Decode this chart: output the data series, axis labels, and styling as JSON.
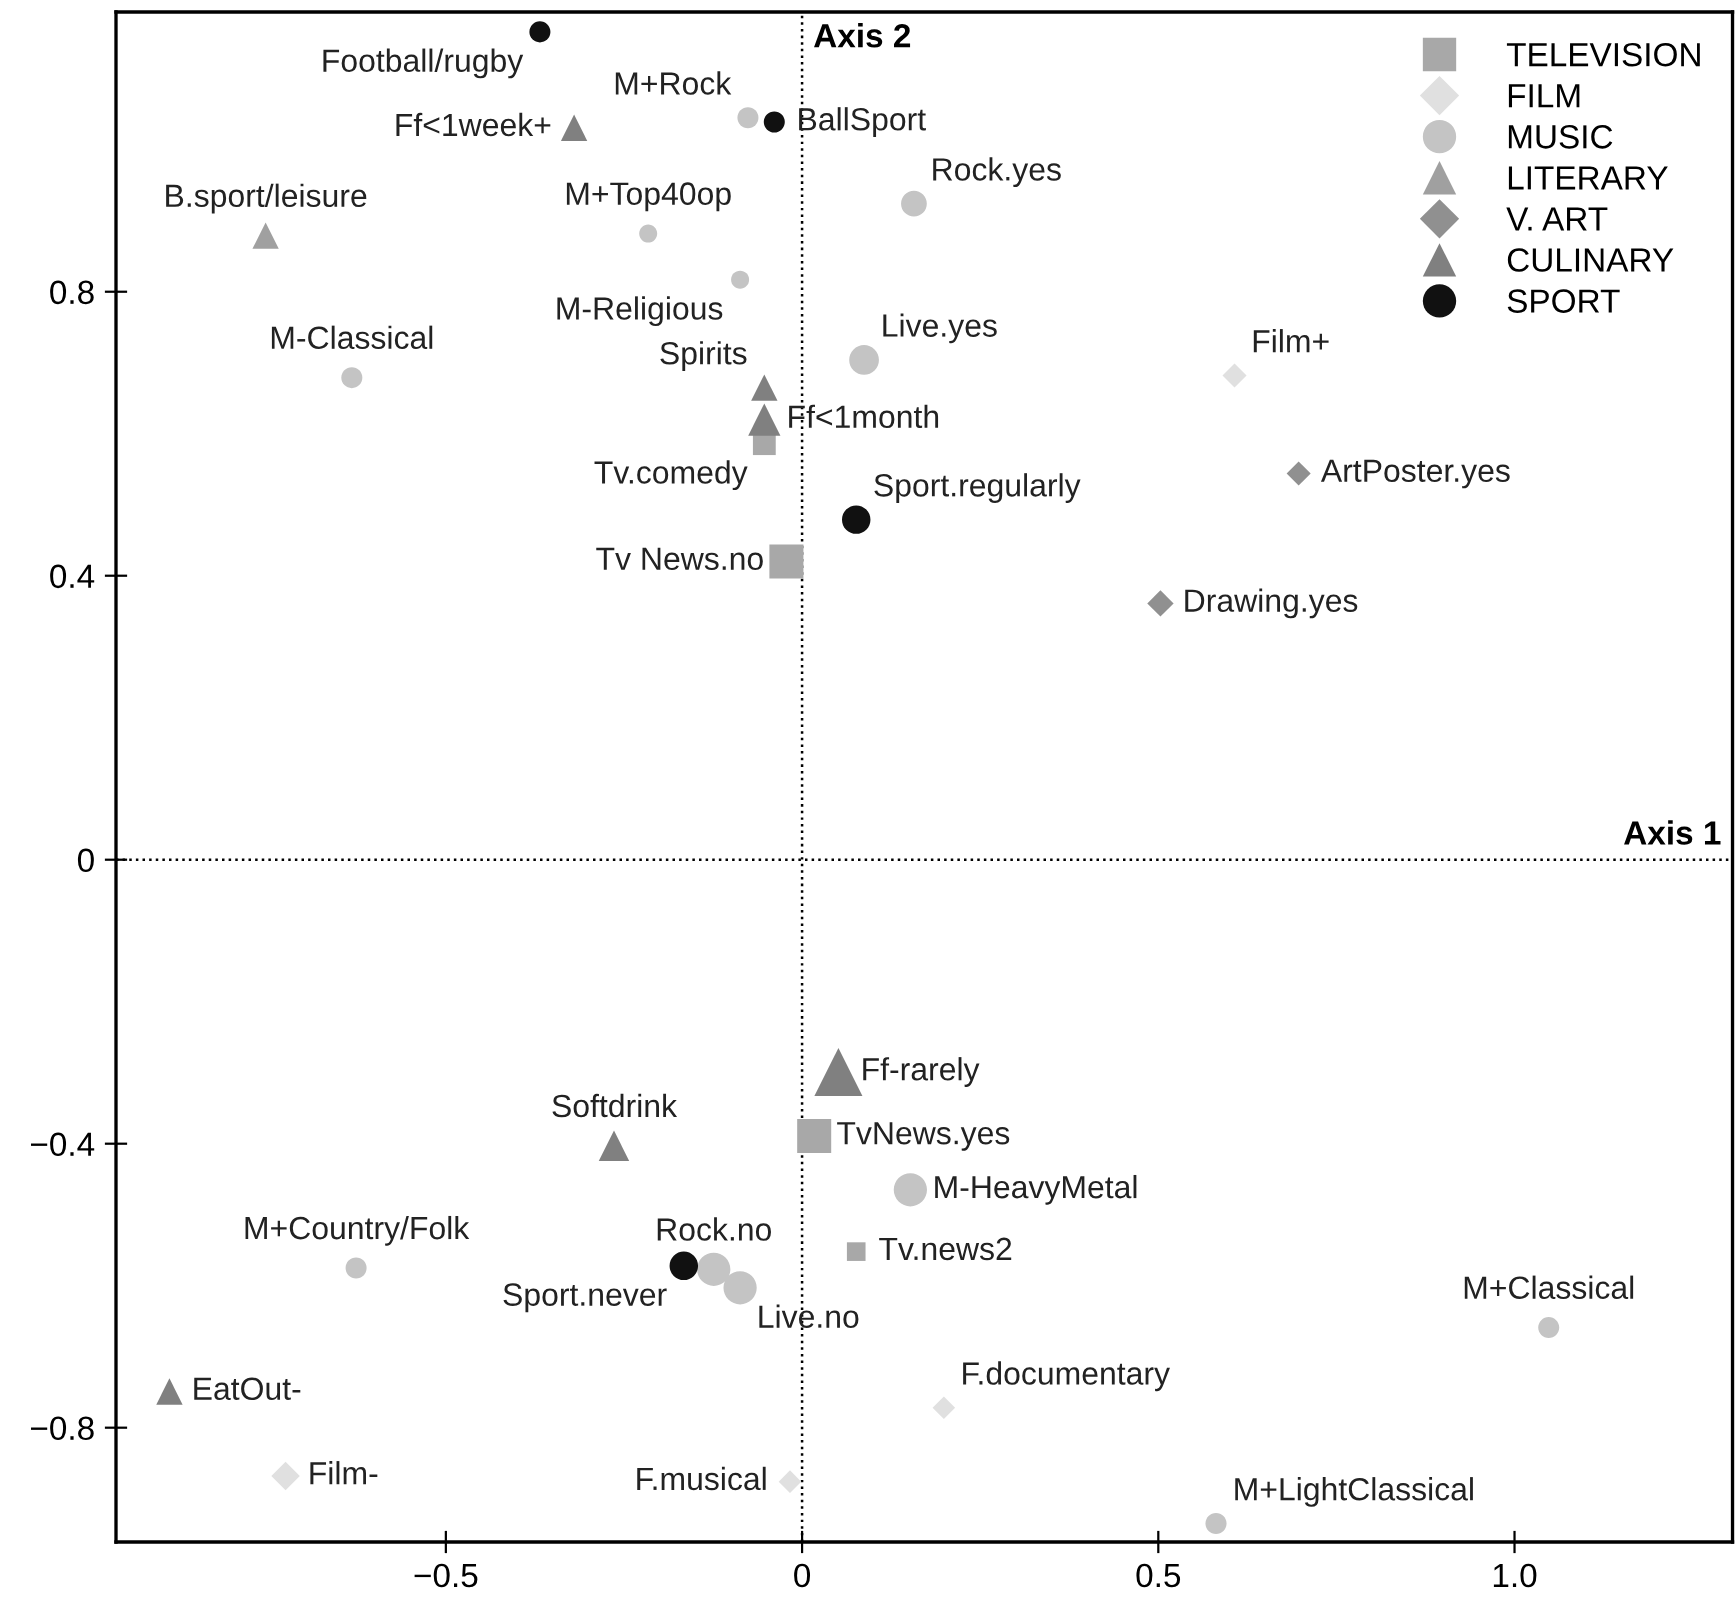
{
  "chart_data": {
    "type": "bubble",
    "xlim": [
      -0.963,
      1.306
    ],
    "ylim": [
      -0.961,
      1.194
    ],
    "xticks": [
      {
        "value": -0.5,
        "label": "−0.5"
      },
      0,
      0.5,
      {
        "value": 1.0,
        "label": "1.0"
      }
    ],
    "yticks": [
      {
        "value": -0.8,
        "label": "−0.8"
      },
      {
        "value": -0.4,
        "label": "−0.4"
      },
      0,
      0.4,
      0.8
    ],
    "ref_lines": [
      {
        "axis": "x",
        "value": 0,
        "label": "Axis 2",
        "line_style": "dotted",
        "color": "#000000"
      },
      {
        "axis": "y",
        "value": 0,
        "label": "Axis 1",
        "line_style": "dotted",
        "color": "#000000"
      }
    ],
    "grid": false,
    "legend": "top right",
    "series": [
      {
        "name": "TELEVISION",
        "color": "#a8a8a8",
        "marker": "square",
        "x": [
          -0.053,
          -0.022,
          0.017,
          0.076
        ],
        "values": [
          0.586,
          0.42,
          -0.389,
          -0.552
        ],
        "sizes": [
          0.45,
          1,
          1,
          0.3
        ],
        "value_labels": [
          "Tv.comedy",
          "Tv News.no",
          "TvNews.yes",
          "Tv.news2"
        ]
      },
      {
        "name": "FILM",
        "color": "#e0e0e0",
        "marker": "diamond",
        "x": [
          0.607,
          0.199,
          -0.725,
          -0.017
        ],
        "values": [
          0.682,
          -0.772,
          -0.868,
          -0.876
        ],
        "sizes": [
          0.25,
          0.22,
          0.35,
          0.22
        ],
        "value_labels": [
          "Film+",
          "F.documentary",
          "Film-",
          "F.musical"
        ]
      },
      {
        "name": "MUSIC",
        "color": "#c4c4c4",
        "marker": "circle",
        "x": [
          -0.076,
          0.157,
          -0.216,
          -0.087,
          -0.632,
          0.087,
          0.152,
          -0.626,
          -0.124,
          -0.087,
          1.048,
          0.581
        ],
        "values": [
          1.045,
          0.924,
          0.882,
          0.817,
          0.679,
          0.704,
          -0.465,
          -0.575,
          -0.577,
          -0.603,
          -0.659,
          -0.935
        ],
        "sizes": [
          0.3,
          0.45,
          0.22,
          0.22,
          0.3,
          0.6,
          0.75,
          0.3,
          0.75,
          0.75,
          0.3,
          0.3
        ],
        "value_labels": [
          "M+Rock",
          "Rock.yes",
          "M+Top40op",
          "M-Religious",
          "M-Classical",
          "Live.yes",
          "M-HeavyMetal",
          "M+Country/Folk",
          "Rock.no",
          "Live.no",
          "M+Classical",
          "M+LightClassical"
        ]
      },
      {
        "name": "LITERARY",
        "color": "#a0a0a0",
        "marker": "triangle",
        "x": [
          -0.753
        ],
        "values": [
          0.879
        ],
        "sizes": [
          0.3
        ],
        "value_labels": [
          "B.sport/leisure"
        ]
      },
      {
        "name": "V. ART",
        "color": "#909090",
        "marker": "diamond",
        "x": [
          0.697,
          0.503
        ],
        "values": [
          0.544,
          0.361
        ],
        "sizes": [
          0.25,
          0.3
        ],
        "value_labels": [
          "ArtPoster.yes",
          "Drawing.yes"
        ]
      },
      {
        "name": "CULINARY",
        "color": "#808080",
        "marker": "triangle",
        "x": [
          -0.32,
          -0.053,
          -0.053,
          0.051,
          -0.264,
          -0.888
        ],
        "values": [
          1.031,
          0.665,
          0.62,
          -0.299,
          -0.403,
          -0.749
        ],
        "sizes": [
          0.3,
          0.3,
          0.45,
          1,
          0.4,
          0.3
        ],
        "value_labels": [
          "Ff<1week+",
          "Spirits",
          "Ff<1month",
          "Ff-rarely",
          "Softdrink",
          "EatOut-"
        ]
      },
      {
        "name": "SPORT",
        "color": "#111111",
        "marker": "circle",
        "x": [
          -0.368,
          -0.039,
          0.076,
          -0.166
        ],
        "values": [
          1.166,
          1.039,
          0.479,
          -0.572
        ],
        "sizes": [
          0.3,
          0.3,
          0.55,
          0.55
        ],
        "value_labels": [
          "Football/rugby",
          "BallSport",
          "Sport.regularly",
          "Sport.never"
        ]
      }
    ]
  }
}
